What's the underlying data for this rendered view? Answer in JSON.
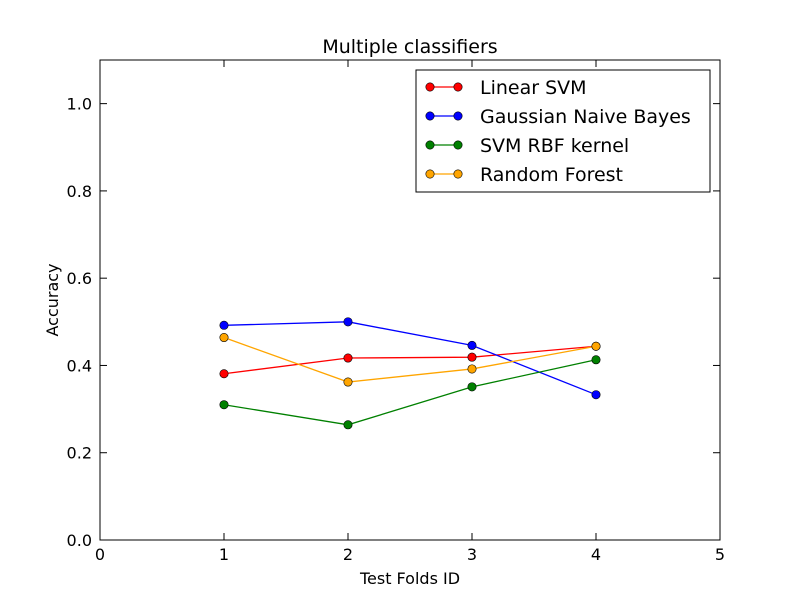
{
  "chart_data": {
    "type": "line",
    "title": "Multiple classifiers",
    "xlabel": "Test Folds ID",
    "ylabel": "Accuracy",
    "xlim": [
      0,
      5
    ],
    "ylim": [
      0.0,
      1.1
    ],
    "xticks": [
      0,
      1,
      2,
      3,
      4,
      5
    ],
    "xtick_labels": [
      "0",
      "1",
      "2",
      "3",
      "4",
      "5"
    ],
    "yticks": [
      0.0,
      0.2,
      0.4,
      0.6,
      0.8,
      1.0
    ],
    "ytick_labels": [
      "0.0",
      "0.2",
      "0.4",
      "0.6",
      "0.8",
      "1.0"
    ],
    "grid": false,
    "legend_position": "top-right",
    "x": [
      1,
      2,
      3,
      4
    ],
    "series": [
      {
        "name": "Linear SVM",
        "color": "#ff0000",
        "values": [
          0.381,
          0.417,
          0.419,
          0.444
        ]
      },
      {
        "name": "Gaussian Naive Bayes",
        "color": "#0000ff",
        "values": [
          0.492,
          0.5,
          0.446,
          0.333
        ]
      },
      {
        "name": "SVM RBF kernel",
        "color": "#008000",
        "values": [
          0.31,
          0.264,
          0.351,
          0.413
        ]
      },
      {
        "name": "Random Forest",
        "color": "#ffa500",
        "values": [
          0.464,
          0.362,
          0.392,
          0.444
        ]
      }
    ]
  }
}
